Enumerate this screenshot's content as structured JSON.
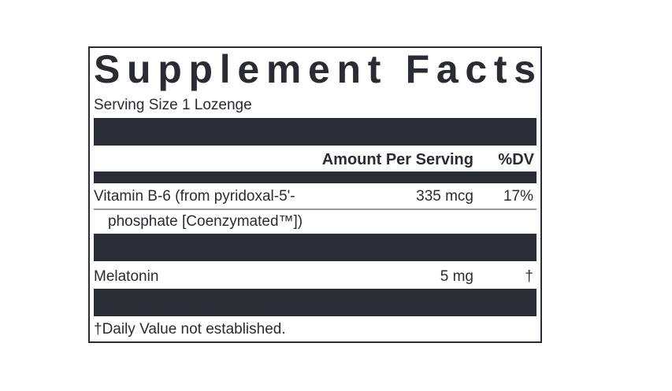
{
  "title": "Supplement Facts",
  "serving_size": "Serving Size 1 Lozenge",
  "header": {
    "amount": "Amount Per Serving",
    "dv": "%DV"
  },
  "rows": [
    {
      "name": [
        "Vitamin B-6 (from pyridoxal-5'-",
        "phosphate [Coenzymated™])"
      ],
      "amount": "335 mcg",
      "dv": "17%"
    },
    {
      "name": [
        "Melatonin"
      ],
      "amount": "5 mg",
      "dv": "†"
    }
  ],
  "footnote": "†Daily Value not established."
}
